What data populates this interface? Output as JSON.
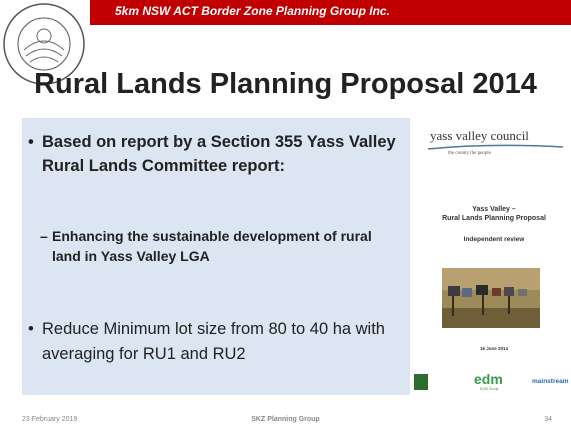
{
  "header": {
    "banner": "5km NSW ACT Border Zone Planning Group Inc.",
    "title": "Rural Lands Planning Proposal 2014"
  },
  "body": {
    "bullets": [
      {
        "text": "Based on report by a Section 355 Yass Valley Rural Lands Committee report:",
        "sub": "Enhancing the sustainable development of rural land in Yass Valley LGA"
      },
      {
        "text": "Reduce Minimum lot size from 80 to 40 ha with averaging for RU1 and RU2"
      }
    ]
  },
  "report": {
    "council": "yass valley council",
    "tagline": "the county   the people",
    "title_line1": "Yass Valley –",
    "title_line2": "Rural Lands Planning Proposal",
    "subtitle": "Independent review",
    "date": "16 June 2014",
    "logo_edm": "edm",
    "logo_edm_sub": "EDM Group",
    "logo_main": "mainstream"
  },
  "footer": {
    "date": "23 February 2019",
    "center": "SKZ Planning Group",
    "page": "34"
  }
}
